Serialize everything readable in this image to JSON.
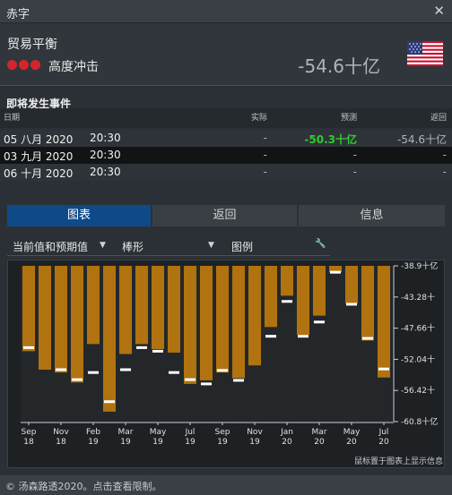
{
  "window": {
    "title": "赤字",
    "close_glyph": "✕"
  },
  "indicator": {
    "name": "贸易平衡",
    "impact_label": "高度冲击",
    "impact_color": "#d3262b",
    "impact_level": 3,
    "latest_value": "-54.6十亿",
    "flag": "united-states-flag-icon"
  },
  "events": {
    "section_title": "即将发生事件",
    "columns": {
      "date": "日期",
      "actual": "实际",
      "forecast": "预测",
      "previous": "返回"
    },
    "rows": [
      {
        "date": "05 八月 2020",
        "time": "20:30",
        "actual": "-",
        "forecast": "-50.3十亿",
        "previous": "-54.6十亿",
        "forecast_color": "#2ecc2e"
      },
      {
        "date": "03 九月 2020",
        "time": "20:30",
        "actual": "-",
        "forecast": "-",
        "previous": "-"
      },
      {
        "date": "06 十月 2020",
        "time": "20:30",
        "actual": "-",
        "forecast": "-",
        "previous": "-"
      }
    ]
  },
  "tabs": [
    {
      "label": "图表",
      "active": true
    },
    {
      "label": "返回",
      "active": false
    },
    {
      "label": "信息",
      "active": false
    }
  ],
  "controls": {
    "mode_label": "当前值和预期值",
    "type_label": "棒形",
    "legend_label": "图例",
    "arrow_glyph": "▼",
    "wrench_glyph": "🔧"
  },
  "chart_data": {
    "type": "bar",
    "bar_color": "#b0730f",
    "expected_color": "#ffffff",
    "ylim": [
      -60.8,
      -38.9
    ],
    "y_ticks": [
      "-38.9十亿",
      "-43.28十",
      "-47.66十",
      "-52.04十",
      "-56.42十",
      "-60.8十亿"
    ],
    "x_tick_labels": [
      {
        "month": "Sep",
        "year": "18"
      },
      {
        "month": "Nov",
        "year": "18"
      },
      {
        "month": "Feb",
        "year": "19"
      },
      {
        "month": "Mar",
        "year": "19"
      },
      {
        "month": "May",
        "year": "19"
      },
      {
        "month": "Jul",
        "year": "19"
      },
      {
        "month": "Sep",
        "year": "19"
      },
      {
        "month": "Nov",
        "year": "19"
      },
      {
        "month": "Jan",
        "year": "20"
      },
      {
        "month": "Mar",
        "year": "20"
      },
      {
        "month": "May",
        "year": "20"
      },
      {
        "month": "Jul",
        "year": "20"
      }
    ],
    "values": [
      -50.9,
      -53.5,
      -53.9,
      -55.3,
      -49.9,
      -59.4,
      -51.3,
      -49.9,
      -50.6,
      -51.1,
      -55.5,
      -55.0,
      -53.9,
      -54.7,
      -52.9,
      -47.5,
      -43.1,
      -48.6,
      -45.9,
      -39.8,
      -44.2,
      -49.4,
      -54.6
    ],
    "expected": [
      -50.4,
      null,
      -53.5,
      -54.9,
      -53.9,
      -58.0,
      -53.5,
      -50.4,
      -50.9,
      -53.9,
      -54.9,
      -55.5,
      -53.6,
      -55.0,
      null,
      -48.8,
      -43.9,
      -48.8,
      -46.8,
      -39.8,
      -44.3,
      -49.1,
      -53.4
    ]
  },
  "chart_note": "鼠标置于图表上显示信息",
  "footer": {
    "text": "© 汤森路透2020。点击查看限制。"
  }
}
